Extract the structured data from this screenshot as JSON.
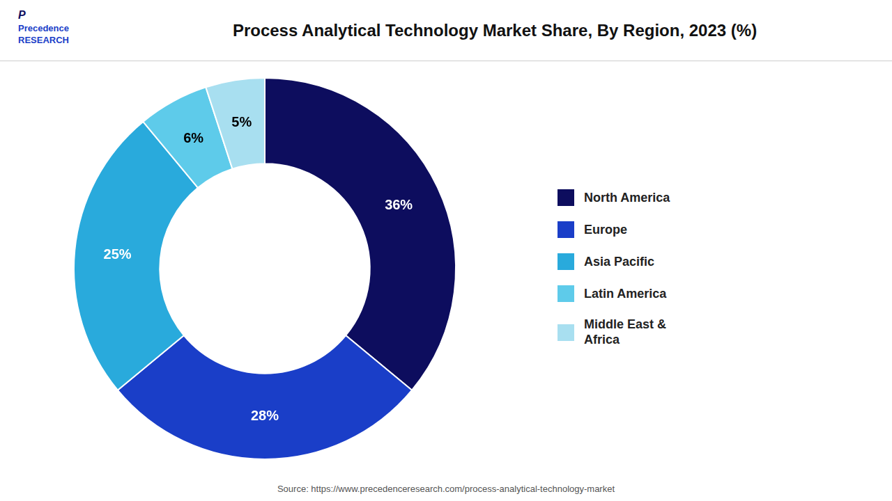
{
  "chart_data": {
    "type": "doughnut",
    "title": "Process Analytical Technology Market Share, By Region, 2023 (%)",
    "categories": [
      "North America",
      "Europe",
      "Asia Pacific",
      "Latin America",
      "Middle East &\nAfrica"
    ],
    "values": [
      36,
      28,
      25,
      6,
      5
    ],
    "value_labels": [
      "36%",
      "28%",
      "25%",
      "6%",
      "5%"
    ],
    "colors": [
      "#0d0d5e",
      "#1a3ec8",
      "#29aadc",
      "#5ecbea",
      "#a8dff0"
    ],
    "data_labels": true,
    "legend": "right",
    "annotations": [
      "P",
      "Precedence\nRESEARCH",
      "Source: https://www.precedenceresearch.com/process-analytical-technology-market"
    ]
  }
}
